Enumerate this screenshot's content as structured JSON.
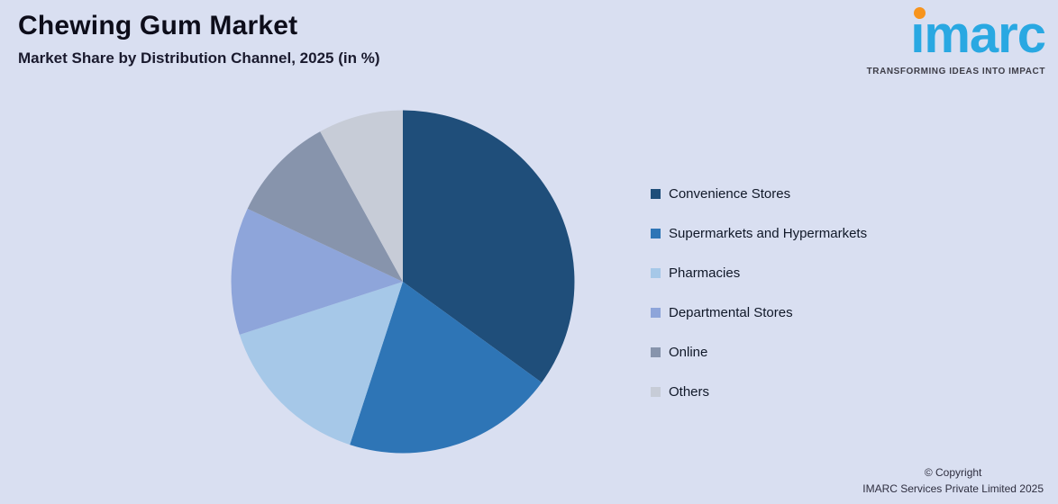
{
  "page": {
    "background": "#d9dff1"
  },
  "header": {
    "title": "Chewing Gum Market",
    "subtitle": "Market Share by Distribution Channel, 2025 (in %)"
  },
  "logo": {
    "text": "ımarc",
    "tagline": "TRANSFORMING IDEAS INTO IMPACT",
    "brand_color": "#29a8e2",
    "dot_color": "#f7941d"
  },
  "chart_data": {
    "type": "pie",
    "title": "Chewing Gum Market",
    "subtitle": "Market Share by Distribution Channel, 2025 (in %)",
    "categories": [
      "Convenience Stores",
      "Supermarkets and Hypermarkets",
      "Pharmacies",
      "Departmental Stores",
      "Online",
      "Others"
    ],
    "values": [
      35,
      20,
      15,
      12,
      10,
      8
    ],
    "unit": "%",
    "colors": [
      "#1f4e7a",
      "#2e75b6",
      "#a6c8e8",
      "#8ea5da",
      "#8794ac",
      "#c7ccd7"
    ],
    "start_angle_deg": 0,
    "direction": "clockwise",
    "legend_position": "right",
    "data_labels": false
  },
  "footer": {
    "copyright_line1": "© Copyright",
    "copyright_line2": "IMARC Services Private Limited 2025"
  }
}
